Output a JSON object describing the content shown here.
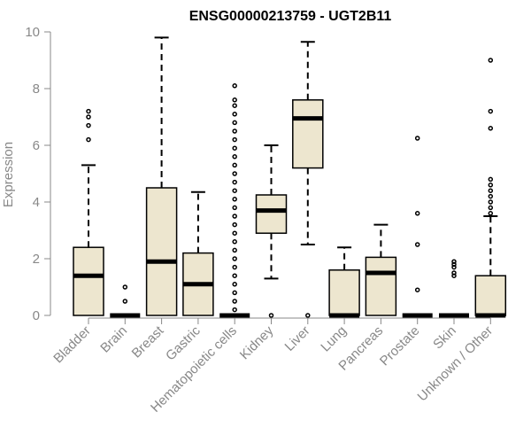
{
  "chart_data": {
    "type": "boxplot",
    "title": "ENSG00000213759 - UGT2B11",
    "ylabel": "Expression",
    "xlabel": "",
    "ylim": [
      0,
      10
    ],
    "yticks": [
      0,
      2,
      4,
      6,
      8,
      10
    ],
    "colors": {
      "box_fill": "#ede6cf",
      "stroke": "#000000",
      "axis_text": "#888888"
    },
    "categories": [
      "Bladder",
      "Brain",
      "Breast",
      "Gastric",
      "Hematopoietic cells",
      "Kidney",
      "Liver",
      "Lung",
      "Pancreas",
      "Prostate",
      "Skin",
      "Unknown / Other"
    ],
    "boxes": [
      {
        "name": "Bladder",
        "min": 0,
        "q1": 0,
        "median": 1.4,
        "q3": 2.4,
        "max": 5.3,
        "outliers": [
          6.2,
          6.7,
          7.0,
          7.2
        ]
      },
      {
        "name": "Brain",
        "min": 0,
        "q1": 0,
        "median": 0,
        "q3": 0,
        "max": 0,
        "outliers": [
          0.5,
          1.0
        ]
      },
      {
        "name": "Breast",
        "min": 0,
        "q1": 0,
        "median": 1.9,
        "q3": 4.5,
        "max": 9.8,
        "outliers": []
      },
      {
        "name": "Gastric",
        "min": 0,
        "q1": 0,
        "median": 1.1,
        "q3": 2.2,
        "max": 4.35,
        "outliers": []
      },
      {
        "name": "Hematopoietic cells",
        "min": 0,
        "q1": 0,
        "median": 0,
        "q3": 0,
        "max": 0,
        "outliers": [
          0.2,
          0.5,
          0.8,
          1.1,
          1.4,
          1.7,
          2.0,
          2.3,
          2.6,
          2.9,
          3.2,
          3.5,
          3.8,
          4.1,
          4.4,
          4.7,
          5.0,
          5.3,
          5.6,
          5.9,
          6.2,
          6.5,
          6.8,
          7.1,
          7.4,
          7.6,
          8.1
        ]
      },
      {
        "name": "Kidney",
        "min": 1.3,
        "q1": 2.9,
        "median": 3.7,
        "q3": 4.25,
        "max": 6.0,
        "outliers": [
          0
        ]
      },
      {
        "name": "Liver",
        "min": 2.5,
        "q1": 5.2,
        "median": 6.95,
        "q3": 7.6,
        "max": 9.65,
        "outliers": [
          0
        ]
      },
      {
        "name": "Lung",
        "min": 0,
        "q1": 0,
        "median": 0,
        "q3": 1.6,
        "max": 2.4,
        "outliers": []
      },
      {
        "name": "Pancreas",
        "min": 0,
        "q1": 0,
        "median": 1.5,
        "q3": 2.05,
        "max": 3.2,
        "outliers": []
      },
      {
        "name": "Prostate",
        "min": 0,
        "q1": 0,
        "median": 0,
        "q3": 0,
        "max": 0,
        "outliers": [
          0.9,
          2.5,
          3.6,
          6.25
        ]
      },
      {
        "name": "Skin",
        "min": 0,
        "q1": 0,
        "median": 0,
        "q3": 0,
        "max": 0,
        "outliers": [
          1.4,
          1.5,
          1.7,
          1.8,
          1.9
        ]
      },
      {
        "name": "Unknown / Other",
        "min": 0,
        "q1": 0,
        "median": 0,
        "q3": 1.4,
        "max": 3.5,
        "outliers": [
          3.6,
          3.8,
          4.0,
          4.2,
          4.4,
          4.6,
          4.8,
          6.6,
          7.2,
          9.0
        ]
      }
    ]
  }
}
